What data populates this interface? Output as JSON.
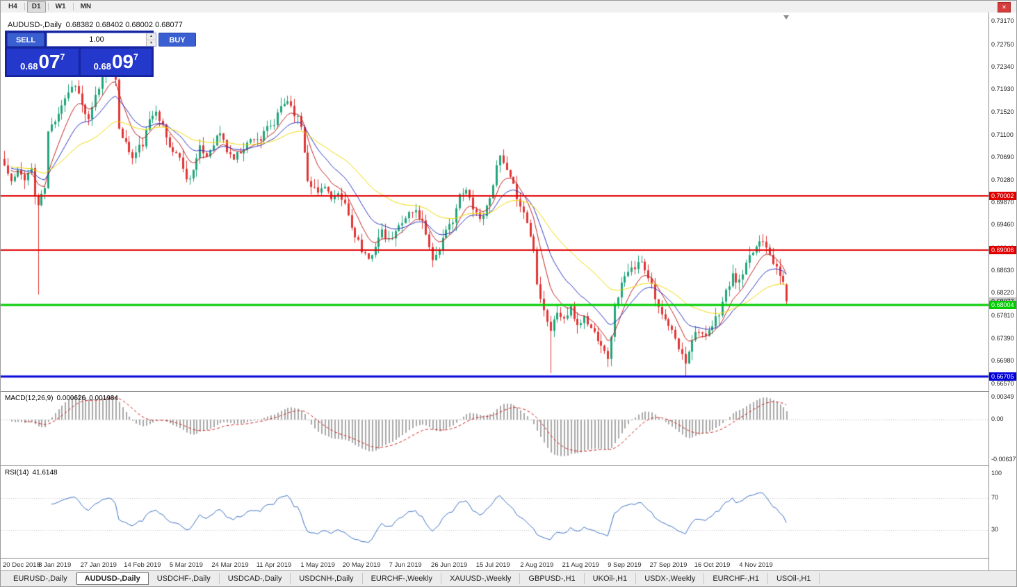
{
  "window": {
    "close_label": "✕"
  },
  "toolbar": {
    "timeframes": [
      {
        "label": "H4",
        "active": false
      },
      {
        "label": "D1",
        "active": true
      },
      {
        "label": "W1",
        "active": false
      },
      {
        "label": "MN",
        "active": false
      }
    ]
  },
  "chart": {
    "symbol": "AUDUSD-,Daily",
    "ohlc_display": "0.68382 0.68402 0.68002 0.68077"
  },
  "trade_panel": {
    "sell_label": "SELL",
    "buy_label": "BUY",
    "volume": "1.00",
    "spinner_up": "▲",
    "spinner_down": "▼",
    "sell_price": {
      "prefix": "0.68",
      "main": "07",
      "sup": "7"
    },
    "buy_price": {
      "prefix": "0.68",
      "main": "09",
      "sup": "7"
    }
  },
  "price_axis": [
    "0.73170",
    "0.72750",
    "0.72340",
    "0.71930",
    "0.71520",
    "0.71100",
    "0.70690",
    "0.70280",
    "0.69870",
    "0.69460",
    "0.69040",
    "0.68630",
    "0.68220",
    "0.67810",
    "0.67390",
    "0.66980",
    "0.66570"
  ],
  "hlines": [
    {
      "price": 0.70002,
      "label": "0.70002",
      "color": "#e00000",
      "width": 2
    },
    {
      "price": 0.69006,
      "label": "0.69006",
      "color": "#e00000",
      "width": 2
    },
    {
      "price": 0.68004,
      "label": "0.68004",
      "color": "#00cc00",
      "width": 3
    },
    {
      "price": 0.66705,
      "label": "0.66705",
      "color": "#0000d8",
      "width": 3
    }
  ],
  "bid_tag": {
    "label": "0.68077",
    "price": 0.68077,
    "bg": "#c8c8c8",
    "fg": "#000"
  },
  "macd": {
    "name": "MACD(12,26,9)",
    "value_main": "0.000626",
    "value_signal": "0.001984",
    "scale": [
      "0.00349",
      "0.00",
      "-0.00637"
    ]
  },
  "rsi": {
    "name": "RSI(14)",
    "value": "41.6148",
    "levels": [
      "100",
      "70",
      "30"
    ]
  },
  "date_axis": [
    "20 Dec 2018",
    "8 Jan 2019",
    "27 Jan 2019",
    "14 Feb 2019",
    "5 Mar 2019",
    "24 Mar 2019",
    "11 Apr 2019",
    "1 May 2019",
    "20 May 2019",
    "7 Jun 2019",
    "26 Jun 2019",
    "15 Jul 2019",
    "2 Aug 2019",
    "21 Aug 2019",
    "9 Sep 2019",
    "27 Sep 2019",
    "16 Oct 2019",
    "4 Nov 2019"
  ],
  "tabs": [
    {
      "label": "EURUSD-,Daily",
      "active": false
    },
    {
      "label": "AUDUSD-,Daily",
      "active": true
    },
    {
      "label": "USDCHF-,Daily",
      "active": false
    },
    {
      "label": "USDCAD-,Daily",
      "active": false
    },
    {
      "label": "USDCNH-,Daily",
      "active": false
    },
    {
      "label": "EURCHF-,Weekly",
      "active": false
    },
    {
      "label": "XAUUSD-,Weekly",
      "active": false
    },
    {
      "label": "GBPUSD-,H1",
      "active": false
    },
    {
      "label": "UKOil-,H1",
      "active": false
    },
    {
      "label": "USDX-,Weekly",
      "active": false
    },
    {
      "label": "EURCHF-,H1",
      "active": false
    },
    {
      "label": "USOil-,H1",
      "active": false
    }
  ],
  "chart_data": {
    "type": "candlestick",
    "title": "AUDUSD-,Daily",
    "ohlc_current": {
      "open": 0.68382,
      "high": 0.68402,
      "low": 0.68002,
      "close": 0.68077
    },
    "ylim": [
      0.6644,
      0.7334
    ],
    "candle_count": 233,
    "seed": 11,
    "date_tick_first_index": 2,
    "date_tick_step": 13,
    "colors": {
      "up": "#20a57a",
      "down": "#e13434",
      "macd_hist": "#a8a8a8",
      "macd_signal": "#d02020",
      "rsi_line": "#3a6fc0"
    },
    "mas": [
      {
        "period": 8,
        "color": "#c02020"
      },
      {
        "period": 17,
        "color": "#2a35c0"
      },
      {
        "period": 40,
        "color": "#f0d800"
      }
    ],
    "indicators": {
      "macd_params": [
        12,
        26,
        9
      ],
      "rsi_period": 14
    },
    "close_waypoints": [
      [
        0,
        0.7055
      ],
      [
        2,
        0.7025
      ],
      [
        4,
        0.7042
      ],
      [
        6,
        0.7034
      ],
      [
        8,
        0.7049
      ],
      [
        9,
        0.7
      ],
      [
        10,
        0.6983
      ],
      [
        12,
        0.7015
      ],
      [
        13,
        0.7115
      ],
      [
        15,
        0.714
      ],
      [
        17,
        0.7168
      ],
      [
        19,
        0.719
      ],
      [
        21,
        0.7205
      ],
      [
        23,
        0.7165
      ],
      [
        25,
        0.7135
      ],
      [
        27,
        0.718
      ],
      [
        29,
        0.7215
      ],
      [
        31,
        0.724
      ],
      [
        32,
        0.7225
      ],
      [
        33,
        0.7205
      ],
      [
        34,
        0.7125
      ],
      [
        36,
        0.7095
      ],
      [
        38,
        0.7068
      ],
      [
        40,
        0.7088
      ],
      [
        41,
        0.7095
      ],
      [
        43,
        0.7135
      ],
      [
        45,
        0.716
      ],
      [
        47,
        0.7125
      ],
      [
        49,
        0.7088
      ],
      [
        51,
        0.7078
      ],
      [
        53,
        0.7055
      ],
      [
        54,
        0.7028
      ],
      [
        56,
        0.7048
      ],
      [
        58,
        0.7085
      ],
      [
        60,
        0.7072
      ],
      [
        62,
        0.7098
      ],
      [
        64,
        0.7115
      ],
      [
        66,
        0.7082
      ],
      [
        68,
        0.7068
      ],
      [
        70,
        0.7082
      ],
      [
        72,
        0.7095
      ],
      [
        74,
        0.7108
      ],
      [
        76,
        0.7102
      ],
      [
        78,
        0.7122
      ],
      [
        80,
        0.713
      ],
      [
        82,
        0.7162
      ],
      [
        84,
        0.7175
      ],
      [
        86,
        0.7152
      ],
      [
        88,
        0.7128
      ],
      [
        90,
        0.7032
      ],
      [
        92,
        0.7012
      ],
      [
        93,
        0.7005
      ],
      [
        95,
        0.7022
      ],
      [
        97,
        0.6992
      ],
      [
        99,
        0.6998
      ],
      [
        101,
        0.6985
      ],
      [
        103,
        0.6942
      ],
      [
        105,
        0.6918
      ],
      [
        106,
        0.6895
      ],
      [
        108,
        0.6882
      ],
      [
        110,
        0.6912
      ],
      [
        112,
        0.6932
      ],
      [
        114,
        0.6916
      ],
      [
        116,
        0.6932
      ],
      [
        118,
        0.6956
      ],
      [
        120,
        0.6968
      ],
      [
        122,
        0.6972
      ],
      [
        124,
        0.6952
      ],
      [
        126,
        0.6912
      ],
      [
        127,
        0.6882
      ],
      [
        129,
        0.6906
      ],
      [
        131,
        0.6932
      ],
      [
        133,
        0.6958
      ],
      [
        135,
        0.6998
      ],
      [
        137,
        0.7008
      ],
      [
        139,
        0.6982
      ],
      [
        141,
        0.6958
      ],
      [
        143,
        0.6978
      ],
      [
        145,
        0.7025
      ],
      [
        147,
        0.7072
      ],
      [
        149,
        0.7042
      ],
      [
        151,
        0.7015
      ],
      [
        153,
        0.6985
      ],
      [
        155,
        0.6952
      ],
      [
        157,
        0.6902
      ],
      [
        158,
        0.6845
      ],
      [
        160,
        0.6792
      ],
      [
        162,
        0.6755
      ],
      [
        164,
        0.6788
      ],
      [
        166,
        0.6775
      ],
      [
        168,
        0.6792
      ],
      [
        170,
        0.6765
      ],
      [
        172,
        0.6778
      ],
      [
        174,
        0.6758
      ],
      [
        176,
        0.6742
      ],
      [
        178,
        0.6722
      ],
      [
        179,
        0.6698
      ],
      [
        181,
        0.6798
      ],
      [
        183,
        0.684
      ],
      [
        185,
        0.6858
      ],
      [
        187,
        0.6872
      ],
      [
        188,
        0.6885
      ],
      [
        190,
        0.6868
      ],
      [
        192,
        0.6842
      ],
      [
        194,
        0.6792
      ],
      [
        196,
        0.6772
      ],
      [
        198,
        0.6752
      ],
      [
        200,
        0.6722
      ],
      [
        201,
        0.6708
      ],
      [
        202,
        0.6698
      ],
      [
        204,
        0.6742
      ],
      [
        206,
        0.6758
      ],
      [
        208,
        0.6738
      ],
      [
        210,
        0.6762
      ],
      [
        212,
        0.6788
      ],
      [
        214,
        0.6825
      ],
      [
        216,
        0.6852
      ],
      [
        218,
        0.6842
      ],
      [
        220,
        0.6872
      ],
      [
        222,
        0.6898
      ],
      [
        224,
        0.6918
      ],
      [
        225,
        0.6922
      ],
      [
        227,
        0.6898
      ],
      [
        229,
        0.6865
      ],
      [
        231,
        0.6842
      ],
      [
        232,
        0.6808
      ]
    ],
    "overrides": [
      {
        "i": 10,
        "l": 0.682
      },
      {
        "i": 31,
        "h": 0.7252
      },
      {
        "i": 162,
        "l": 0.6677
      },
      {
        "i": 179,
        "l": 0.6688
      },
      {
        "i": 202,
        "l": 0.6671
      },
      {
        "i": 225,
        "h": 0.693
      },
      {
        "i": 232,
        "o": 0.68382,
        "h": 0.68402,
        "l": 0.68002,
        "c": 0.68077
      }
    ]
  }
}
